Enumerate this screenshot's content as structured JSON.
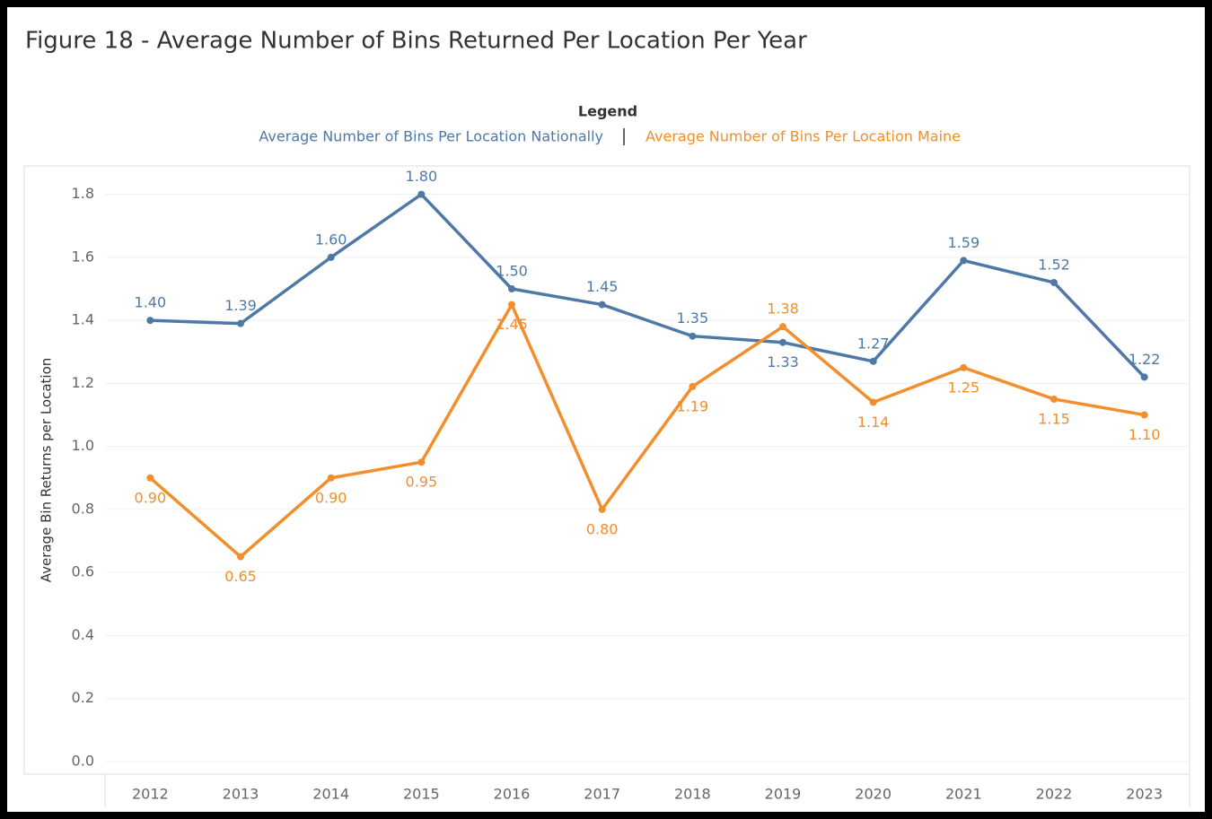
{
  "chart_data": {
    "type": "line",
    "title": "Figure 18 - Average Number of Bins Returned Per Location Per Year",
    "legend_title": "Legend",
    "y_label": "Average Bin Returns per Location",
    "categories": [
      "2012",
      "2013",
      "2014",
      "2015",
      "2016",
      "2017",
      "2018",
      "2019",
      "2020",
      "2021",
      "2022",
      "2023"
    ],
    "series": [
      {
        "name": "Average Number of Bins Per Location Nationally",
        "color": "#4e79a7",
        "values": [
          1.4,
          1.39,
          1.6,
          1.8,
          1.5,
          1.45,
          1.35,
          1.33,
          1.27,
          1.59,
          1.52,
          1.22
        ],
        "value_labels": [
          "1.40",
          "1.39",
          "1.60",
          "1.80",
          "1.50",
          "1.45",
          "1.35",
          "1.33",
          "1.27",
          "1.59",
          "1.52",
          "1.22"
        ]
      },
      {
        "name": "Average Number of Bins Per Location Maine",
        "color": "#f28e2b",
        "values": [
          0.9,
          0.65,
          0.9,
          0.95,
          1.45,
          0.8,
          1.19,
          1.38,
          1.14,
          1.25,
          1.15,
          1.1
        ],
        "value_labels": [
          "0.90",
          "0.65",
          "0.90",
          "0.95",
          "1.45",
          "0.80",
          "1.19",
          "1.38",
          "1.14",
          "1.25",
          "1.15",
          "1.10"
        ]
      }
    ],
    "ylim": [
      -0.04,
      1.89
    ],
    "yticks": [
      {
        "value": 0,
        "label": "0.0"
      },
      0.2,
      0.4,
      0.6,
      0.8,
      {
        "value": 1,
        "label": "1.0"
      },
      1.2,
      1.4,
      1.6,
      1.8
    ],
    "grid": true
  }
}
